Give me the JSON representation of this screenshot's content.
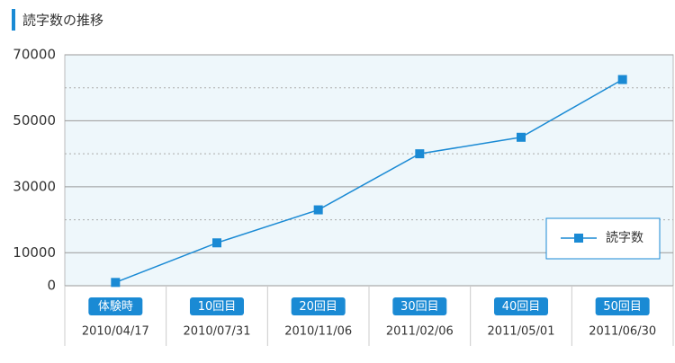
{
  "chart_data": {
    "type": "line",
    "title": "読字数の推移",
    "categories": [
      "体験時",
      "10回目",
      "20回目",
      "30回目",
      "40回目",
      "50回目"
    ],
    "dates": [
      "2010/04/17",
      "2010/07/31",
      "2010/11/06",
      "2011/02/06",
      "2011/05/01",
      "2011/06/30"
    ],
    "series": [
      {
        "name": "読字数",
        "color": "#1a8ad4",
        "values": [
          1000,
          13000,
          23000,
          40000,
          45000,
          62500
        ]
      }
    ],
    "ylim": [
      0,
      70000
    ],
    "yticks": [
      0,
      10000,
      30000,
      50000,
      70000
    ],
    "minor_grid": [
      20000,
      40000,
      60000
    ],
    "grid": true,
    "legend": "lower right"
  }
}
